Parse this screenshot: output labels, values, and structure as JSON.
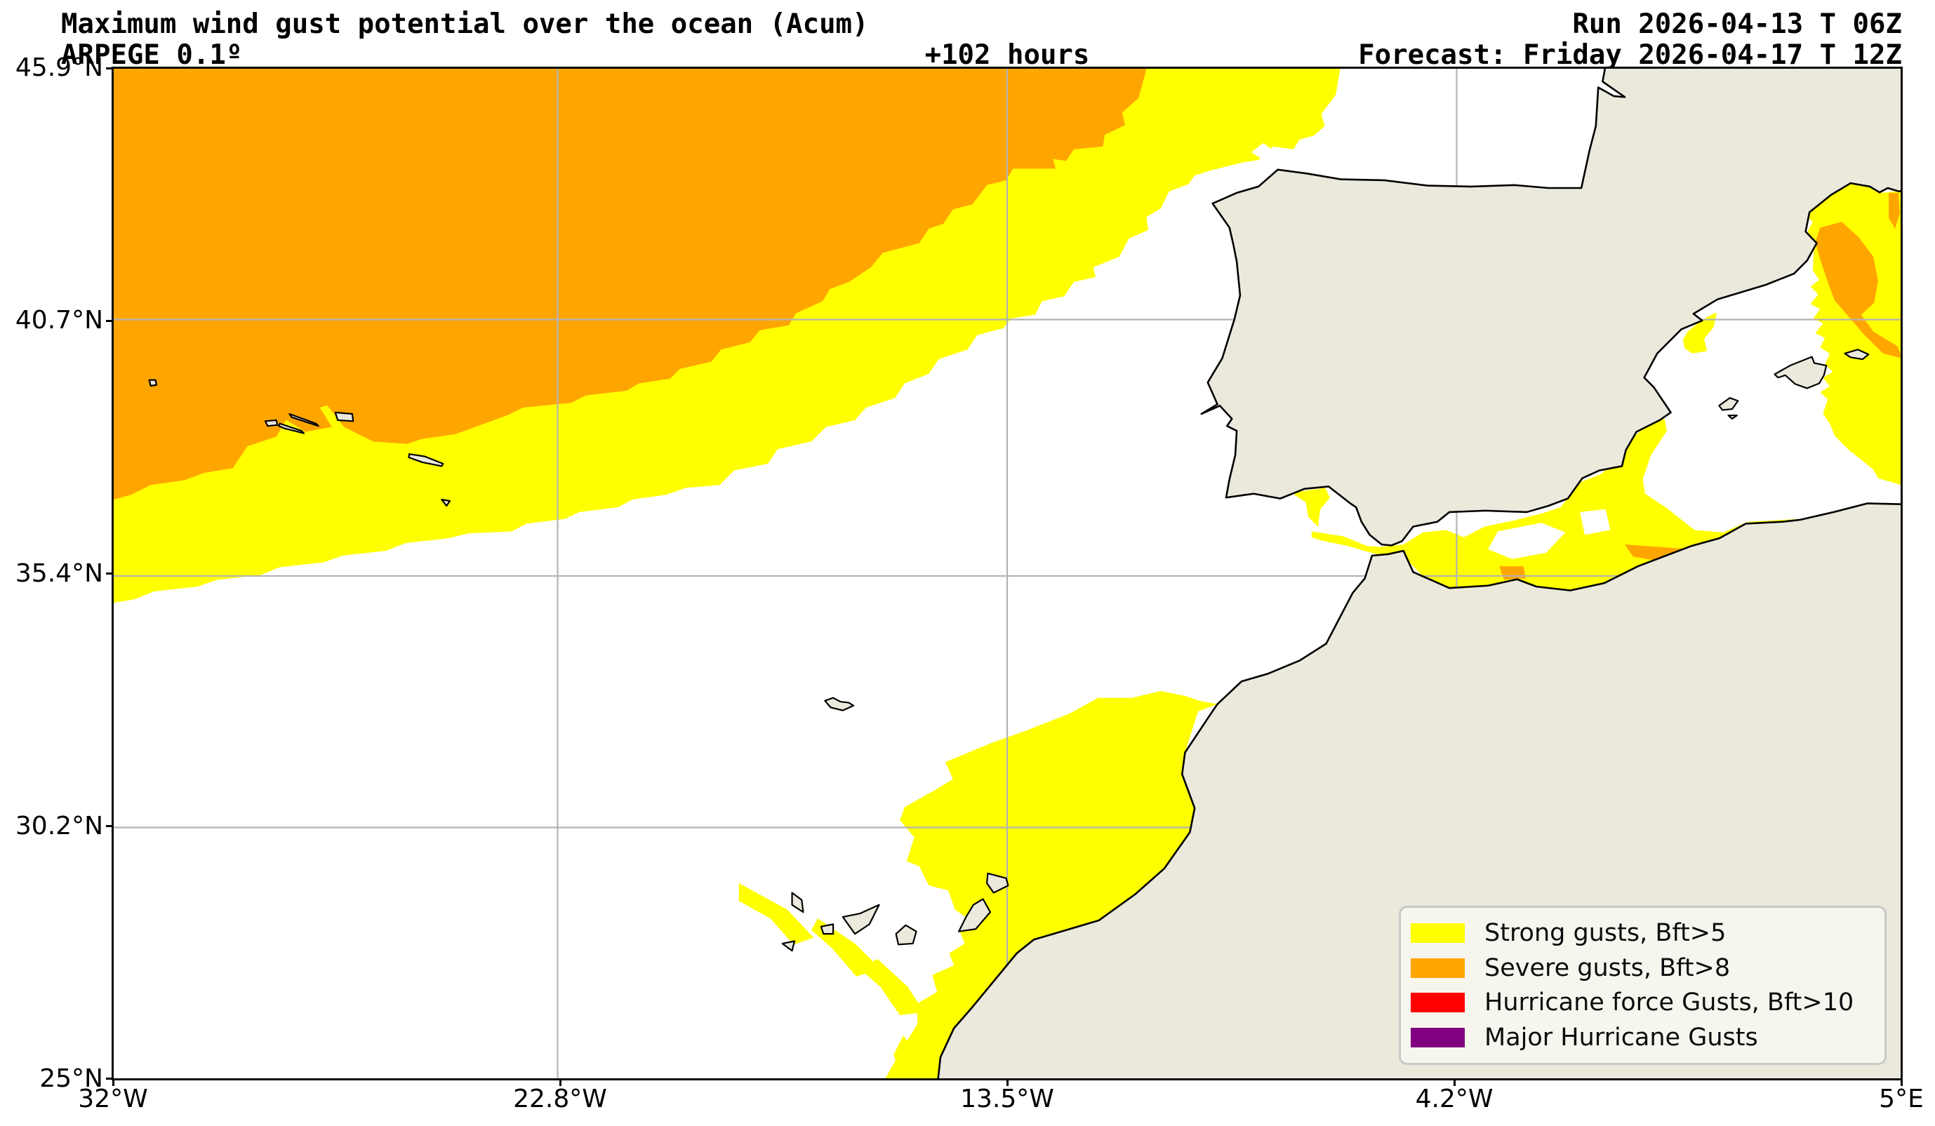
{
  "header": {
    "title": "Maximum wind gust potential over the ocean (Acum)",
    "model": "ARPEGE 0.1º",
    "lead_time": "+102 hours",
    "run": "Run 2026-04-13 T 06Z",
    "forecast": "Forecast: Friday 2026-04-17 T 12Z"
  },
  "axes": {
    "y_ticks": [
      "45.9°N",
      "40.7°N",
      "35.4°N",
      "30.2°N",
      "25°N"
    ],
    "x_ticks": [
      "32°W",
      "22.8°W",
      "13.5°W",
      "4.2°W",
      "5°E"
    ]
  },
  "legend": {
    "items": [
      {
        "label": "Strong gusts, Bft>5",
        "color": "#ffff00"
      },
      {
        "label": "Severe gusts, Bft>8",
        "color": "#ffa500"
      },
      {
        "label": "Hurricane force Gusts, Bft>10",
        "color": "#ff0000"
      },
      {
        "label": "Major Hurricane Gusts",
        "color": "#800080"
      }
    ]
  },
  "colors": {
    "ocean": "#ffffff",
    "land": "#ebe9dc",
    "coastline": "#000000",
    "gridline": "#b3b3b3",
    "frame": "#0a0a0a",
    "strong": "#ffff00",
    "severe": "#ffa500"
  }
}
